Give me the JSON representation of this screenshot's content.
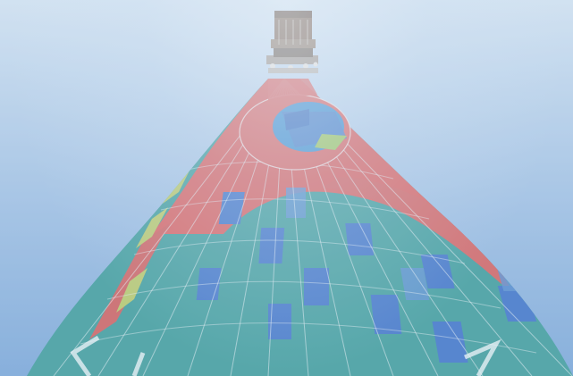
{
  "scene": {
    "subject": "hot-air-balloon-from-below",
    "colors": {
      "sky_top": "#d4e3f2",
      "sky_bottom": "#7aa6d8",
      "envelope_teal": "#3f9c9c",
      "envelope_red": "#d95f5f",
      "envelope_blue": "#3f73c8",
      "envelope_yellow": "#b8c86a",
      "basket": "#7a5e4c",
      "seam": "#e8f0f4"
    }
  }
}
